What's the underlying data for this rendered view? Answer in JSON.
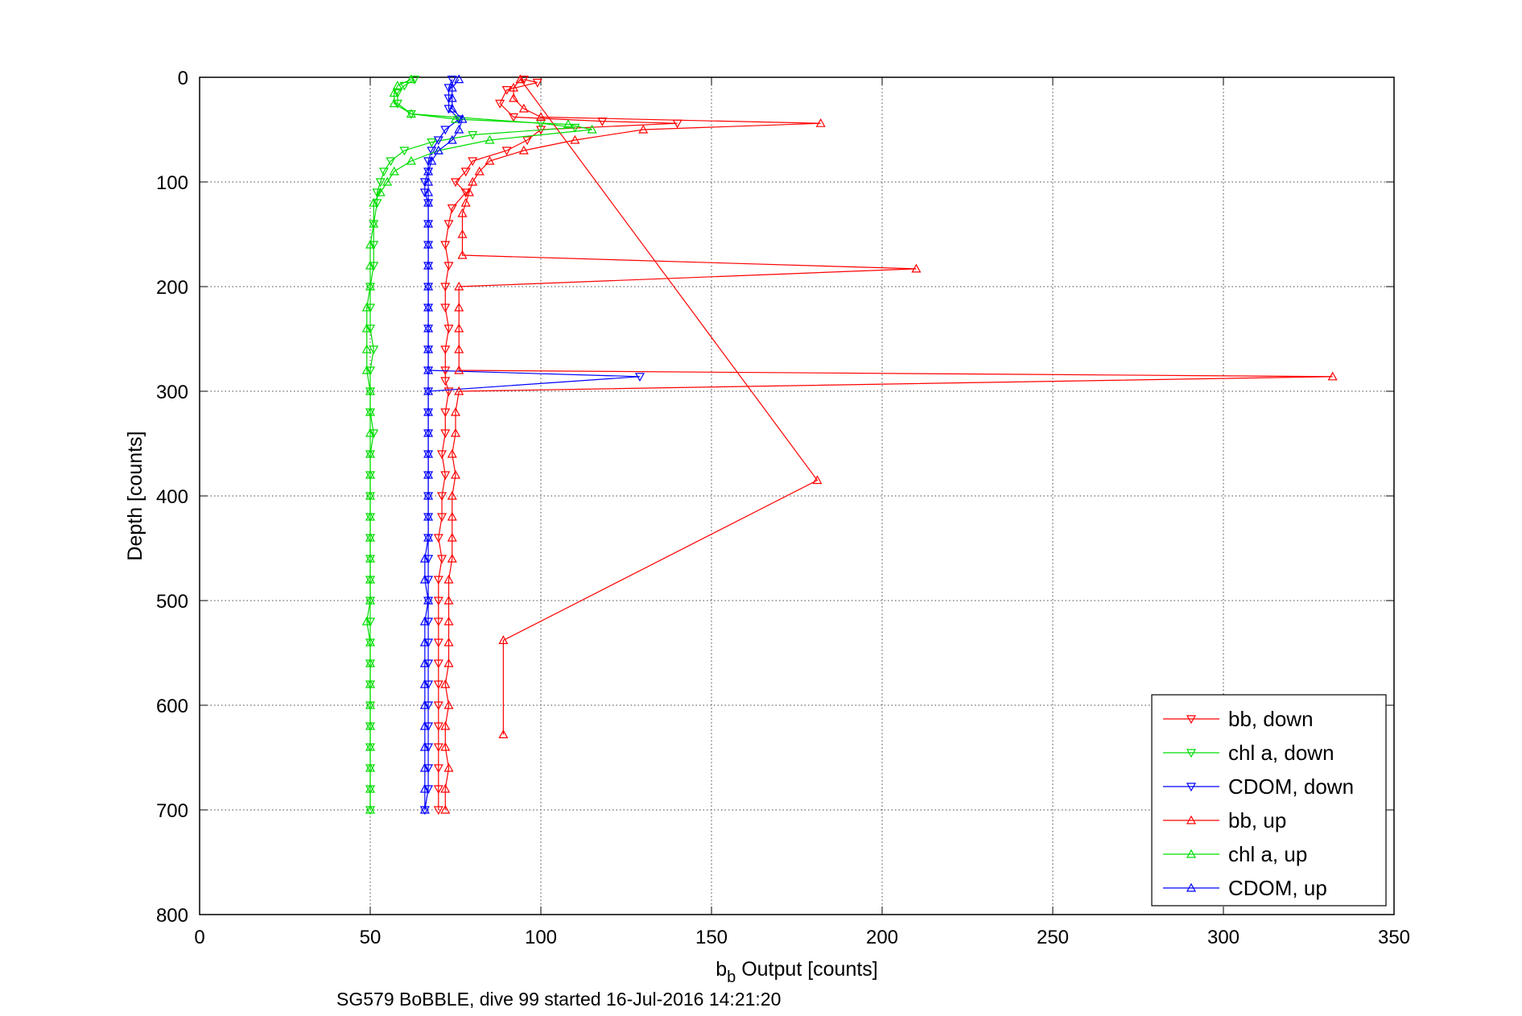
{
  "chart_data": {
    "type": "scatter",
    "xlabel_main": "b",
    "xlabel_sub": "b",
    "xlabel_rest": " Output [counts]",
    "ylabel": "Depth [counts]",
    "caption": "SG579 BoBBLE, dive 99 started 16-Jul-2016 14:21:20",
    "xlim": [
      0,
      350
    ],
    "ylim": [
      0,
      800
    ],
    "y_reversed": true,
    "xticks": [
      0,
      50,
      100,
      150,
      200,
      250,
      300,
      350
    ],
    "yticks": [
      0,
      100,
      200,
      300,
      400,
      500,
      600,
      700,
      800
    ],
    "xtick_labels": [
      "0",
      "50",
      "100",
      "150",
      "200",
      "250",
      "300",
      "350"
    ],
    "ytick_labels": [
      "0",
      "100",
      "200",
      "300",
      "400",
      "500",
      "600",
      "700",
      "800"
    ],
    "grid": true,
    "legend_position": "bottom-right",
    "series": [
      {
        "name": "bb, down",
        "color": "#ff0000",
        "marker": "triangle-down",
        "points": [
          [
            95,
            2
          ],
          [
            99,
            5
          ],
          [
            90,
            12
          ],
          [
            88,
            25
          ],
          [
            92,
            38
          ],
          [
            118,
            42
          ],
          [
            140,
            44
          ],
          [
            100,
            50
          ],
          [
            96,
            60
          ],
          [
            90,
            70
          ],
          [
            80,
            80
          ],
          [
            78,
            90
          ],
          [
            75,
            100
          ],
          [
            78,
            110
          ],
          [
            74,
            125
          ],
          [
            73,
            140
          ],
          [
            72,
            160
          ],
          [
            73,
            180
          ],
          [
            72,
            200
          ],
          [
            72,
            220
          ],
          [
            73,
            240
          ],
          [
            72,
            260
          ],
          [
            72,
            280
          ],
          [
            72,
            290
          ],
          [
            73,
            300
          ],
          [
            72,
            320
          ],
          [
            72,
            340
          ],
          [
            71,
            360
          ],
          [
            72,
            380
          ],
          [
            71,
            400
          ],
          [
            71,
            420
          ],
          [
            70,
            440
          ],
          [
            71,
            460
          ],
          [
            70,
            480
          ],
          [
            70,
            500
          ],
          [
            70,
            520
          ],
          [
            70,
            540
          ],
          [
            70,
            560
          ],
          [
            70,
            580
          ],
          [
            70,
            600
          ],
          [
            70,
            620
          ],
          [
            70,
            640
          ],
          [
            70,
            660
          ],
          [
            70,
            680
          ],
          [
            70,
            700
          ]
        ]
      },
      {
        "name": "chl a, down",
        "color": "#00dd00",
        "marker": "triangle-down",
        "points": [
          [
            63,
            2
          ],
          [
            60,
            8
          ],
          [
            58,
            15
          ],
          [
            58,
            25
          ],
          [
            62,
            35
          ],
          [
            100,
            44
          ],
          [
            110,
            48
          ],
          [
            80,
            55
          ],
          [
            68,
            62
          ],
          [
            60,
            70
          ],
          [
            56,
            80
          ],
          [
            54,
            90
          ],
          [
            53,
            100
          ],
          [
            52,
            110
          ],
          [
            52,
            120
          ],
          [
            51,
            140
          ],
          [
            51,
            160
          ],
          [
            51,
            180
          ],
          [
            50,
            200
          ],
          [
            50,
            220
          ],
          [
            50,
            240
          ],
          [
            51,
            260
          ],
          [
            50,
            280
          ],
          [
            50,
            300
          ],
          [
            50,
            320
          ],
          [
            51,
            340
          ],
          [
            50,
            360
          ],
          [
            50,
            380
          ],
          [
            50,
            400
          ],
          [
            50,
            420
          ],
          [
            50,
            440
          ],
          [
            50,
            460
          ],
          [
            50,
            480
          ],
          [
            50,
            500
          ],
          [
            50,
            520
          ],
          [
            50,
            540
          ],
          [
            50,
            560
          ],
          [
            50,
            580
          ],
          [
            50,
            600
          ],
          [
            50,
            620
          ],
          [
            50,
            640
          ],
          [
            50,
            660
          ],
          [
            50,
            680
          ],
          [
            50,
            700
          ]
        ]
      },
      {
        "name": "CDOM, down",
        "color": "#0000ff",
        "marker": "triangle-down",
        "points": [
          [
            74,
            2
          ],
          [
            73,
            10
          ],
          [
            73,
            20
          ],
          [
            73,
            30
          ],
          [
            76,
            40
          ],
          [
            72,
            50
          ],
          [
            70,
            60
          ],
          [
            68,
            70
          ],
          [
            67,
            80
          ],
          [
            67,
            90
          ],
          [
            66,
            100
          ],
          [
            66,
            110
          ],
          [
            67,
            120
          ],
          [
            67,
            140
          ],
          [
            67,
            160
          ],
          [
            67,
            180
          ],
          [
            67,
            200
          ],
          [
            67,
            220
          ],
          [
            67,
            240
          ],
          [
            67,
            260
          ],
          [
            67,
            280
          ],
          [
            129,
            286
          ],
          [
            67,
            300
          ],
          [
            67,
            320
          ],
          [
            67,
            340
          ],
          [
            67,
            360
          ],
          [
            67,
            380
          ],
          [
            67,
            400
          ],
          [
            67,
            420
          ],
          [
            67,
            440
          ],
          [
            67,
            460
          ],
          [
            67,
            480
          ],
          [
            67,
            500
          ],
          [
            67,
            520
          ],
          [
            67,
            540
          ],
          [
            67,
            560
          ],
          [
            67,
            580
          ],
          [
            67,
            600
          ],
          [
            67,
            620
          ],
          [
            67,
            640
          ],
          [
            67,
            660
          ],
          [
            67,
            680
          ],
          [
            66,
            700
          ]
        ]
      },
      {
        "name": "bb, up",
        "color": "#ff0000",
        "marker": "triangle-up",
        "points": [
          [
            72,
            700
          ],
          [
            72,
            680
          ],
          [
            73,
            660
          ],
          [
            72,
            640
          ],
          [
            72,
            620
          ],
          [
            73,
            600
          ],
          [
            72,
            580
          ],
          [
            73,
            560
          ],
          [
            73,
            540
          ],
          [
            73,
            520
          ],
          [
            73,
            500
          ],
          [
            73,
            480
          ],
          [
            74,
            460
          ],
          [
            74,
            440
          ],
          [
            74,
            420
          ],
          [
            74,
            400
          ],
          [
            75,
            380
          ],
          [
            74,
            360
          ],
          [
            75,
            340
          ],
          [
            75,
            320
          ],
          [
            76,
            300
          ],
          [
            332,
            286
          ],
          [
            76,
            280
          ],
          [
            76,
            260
          ],
          [
            76,
            240
          ],
          [
            76,
            220
          ],
          [
            76,
            200
          ],
          [
            210,
            183
          ],
          [
            77,
            170
          ],
          [
            77,
            150
          ],
          [
            77,
            130
          ],
          [
            78,
            120
          ],
          [
            79,
            110
          ],
          [
            80,
            100
          ],
          [
            82,
            90
          ],
          [
            85,
            80
          ],
          [
            95,
            70
          ],
          [
            110,
            60
          ],
          [
            130,
            50
          ],
          [
            182,
            44
          ],
          [
            100,
            38
          ],
          [
            95,
            30
          ],
          [
            92,
            20
          ],
          [
            92,
            10
          ],
          [
            94,
            2
          ],
          [
            181,
            385
          ],
          [
            89,
            538
          ],
          [
            89,
            628
          ]
        ]
      },
      {
        "name": "chl a, up",
        "color": "#00dd00",
        "marker": "triangle-up",
        "points": [
          [
            50,
            700
          ],
          [
            50,
            680
          ],
          [
            50,
            660
          ],
          [
            50,
            640
          ],
          [
            50,
            620
          ],
          [
            50,
            600
          ],
          [
            50,
            580
          ],
          [
            50,
            560
          ],
          [
            50,
            540
          ],
          [
            49,
            520
          ],
          [
            50,
            500
          ],
          [
            50,
            480
          ],
          [
            50,
            460
          ],
          [
            50,
            440
          ],
          [
            50,
            420
          ],
          [
            50,
            400
          ],
          [
            50,
            380
          ],
          [
            50,
            360
          ],
          [
            50,
            340
          ],
          [
            50,
            320
          ],
          [
            50,
            300
          ],
          [
            49,
            280
          ],
          [
            49,
            260
          ],
          [
            49,
            240
          ],
          [
            49,
            220
          ],
          [
            50,
            200
          ],
          [
            50,
            180
          ],
          [
            50,
            160
          ],
          [
            51,
            140
          ],
          [
            51,
            120
          ],
          [
            53,
            110
          ],
          [
            55,
            100
          ],
          [
            57,
            90
          ],
          [
            62,
            80
          ],
          [
            70,
            70
          ],
          [
            85,
            60
          ],
          [
            115,
            50
          ],
          [
            108,
            45
          ],
          [
            75,
            40
          ],
          [
            62,
            35
          ],
          [
            57,
            25
          ],
          [
            57,
            15
          ],
          [
            58,
            8
          ],
          [
            62,
            2
          ]
        ]
      },
      {
        "name": "CDOM, up",
        "color": "#0000ff",
        "marker": "triangle-up",
        "points": [
          [
            66,
            700
          ],
          [
            66,
            680
          ],
          [
            66,
            660
          ],
          [
            66,
            640
          ],
          [
            66,
            620
          ],
          [
            66,
            600
          ],
          [
            66,
            580
          ],
          [
            66,
            560
          ],
          [
            66,
            540
          ],
          [
            66,
            520
          ],
          [
            67,
            500
          ],
          [
            66,
            480
          ],
          [
            66,
            460
          ],
          [
            67,
            440
          ],
          [
            67,
            420
          ],
          [
            67,
            400
          ],
          [
            67,
            380
          ],
          [
            67,
            360
          ],
          [
            67,
            340
          ],
          [
            67,
            320
          ],
          [
            67,
            300
          ],
          [
            67,
            280
          ],
          [
            67,
            260
          ],
          [
            67,
            240
          ],
          [
            67,
            220
          ],
          [
            67,
            200
          ],
          [
            67,
            180
          ],
          [
            67,
            160
          ],
          [
            67,
            140
          ],
          [
            67,
            120
          ],
          [
            67,
            110
          ],
          [
            67,
            100
          ],
          [
            67,
            90
          ],
          [
            68,
            80
          ],
          [
            70,
            70
          ],
          [
            74,
            60
          ],
          [
            76,
            50
          ],
          [
            77,
            40
          ],
          [
            74,
            30
          ],
          [
            74,
            20
          ],
          [
            74,
            10
          ],
          [
            76,
            2
          ]
        ]
      }
    ]
  }
}
